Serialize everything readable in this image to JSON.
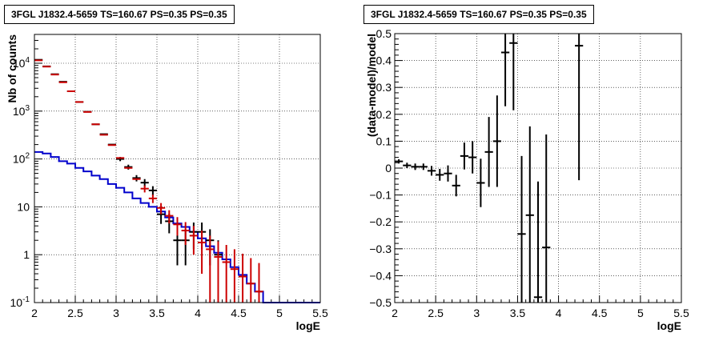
{
  "chart_data": [
    {
      "type": "histogram-line",
      "title": "3FGL J1832.4-5659 TS=160.67 PS=0.35 PS=0.35",
      "xlabel": "logE",
      "ylabel": "Nb of counts",
      "xlim": [
        2,
        5.5
      ],
      "ylim": [
        0.1,
        40000
      ],
      "yscale": "log",
      "grid": true,
      "x_ticks": [
        "2",
        "2.5",
        "3",
        "3.5",
        "4",
        "4.5",
        "5",
        "5.5"
      ],
      "y_ticks": [
        "10^-1",
        "1",
        "10",
        "10^2",
        "10^3",
        "10^4"
      ],
      "series": [
        {
          "color": "#0000cc",
          "style": "step",
          "bin_edges": [
            2.0,
            2.1,
            2.2,
            2.3,
            2.4,
            2.5,
            2.6,
            2.7,
            2.8,
            2.9,
            3.0,
            3.1,
            3.2,
            3.3,
            3.4,
            3.5,
            3.6,
            3.7,
            3.8,
            3.9,
            4.0,
            4.1,
            4.2,
            4.3,
            4.4,
            4.5,
            4.6,
            4.7,
            4.8,
            5.5
          ],
          "values": [
            140,
            130,
            110,
            90,
            80,
            65,
            55,
            45,
            38,
            30,
            25,
            20,
            15,
            12,
            10,
            8,
            6,
            4.5,
            3.8,
            3,
            2.2,
            1.5,
            1.1,
            0.8,
            0.55,
            0.38,
            0.25,
            0.17,
            0.1
          ]
        },
        {
          "color": "#cc0000",
          "style": "errorbar",
          "x": [
            2.05,
            2.15,
            2.25,
            2.35,
            2.45,
            2.55,
            2.65,
            2.75,
            2.85,
            2.95,
            3.05,
            3.15,
            3.25,
            3.35,
            3.45,
            3.55,
            3.65,
            3.75,
            3.85,
            3.95,
            4.05,
            4.15,
            4.25,
            4.35,
            4.45,
            4.55,
            4.65,
            4.75
          ],
          "y": [
            11500,
            8500,
            5800,
            4000,
            2600,
            1550,
            960,
            530,
            320,
            195,
            105,
            65,
            38,
            24,
            15,
            9.5,
            6.5,
            4.3,
            3.2,
            2.5,
            1.8,
            1.3,
            0.9,
            0.7,
            0.5,
            0.35,
            0.25,
            0.17
          ],
          "y_err": [
            0,
            0,
            0,
            0,
            0,
            0,
            0,
            0,
            0,
            0,
            0,
            0,
            0,
            4,
            3,
            2.5,
            2,
            1.8,
            1.6,
            1.5,
            1.4,
            1.2,
            1.0,
            0.9,
            0.8,
            0.7,
            0.6,
            0.5
          ]
        },
        {
          "color": "#000000",
          "style": "errorbar",
          "x": [
            2.05,
            2.15,
            2.25,
            2.35,
            2.45,
            2.55,
            2.65,
            2.75,
            2.85,
            2.95,
            3.05,
            3.15,
            3.25,
            3.35,
            3.45,
            3.55,
            3.65,
            3.75,
            3.85,
            3.95,
            4.05,
            4.15,
            4.25
          ],
          "y": [
            11800,
            8600,
            5900,
            4100,
            2600,
            1550,
            970,
            530,
            330,
            200,
            100,
            68,
            40,
            32,
            22,
            7,
            5,
            2,
            2,
            3,
            3,
            2,
            1
          ],
          "y_err": [
            0,
            0,
            0,
            0,
            0,
            0,
            0,
            0,
            0,
            0,
            10,
            8,
            6,
            6,
            5,
            2.6,
            2.2,
            1.4,
            1.4,
            1.7,
            1.7,
            1.4,
            1.0
          ]
        }
      ]
    },
    {
      "type": "errorbar",
      "title": "3FGL J1832.4-5659 TS=160.67 PS=0.35 PS=0.35",
      "xlabel": "logE",
      "ylabel": "(data-model)/model",
      "xlim": [
        2,
        5.5
      ],
      "ylim": [
        -0.5,
        0.5
      ],
      "grid": true,
      "x_ticks": [
        "2",
        "2.5",
        "3",
        "3.5",
        "4",
        "4.5",
        "5",
        "5.5"
      ],
      "y_ticks": [
        "−0.5",
        "−0.4",
        "−0.3",
        "−0.2",
        "−0.1",
        "0",
        "0.1",
        "0.2",
        "0.3",
        "0.4",
        "0.5"
      ],
      "series": [
        {
          "color": "#000000",
          "x": [
            2.05,
            2.15,
            2.25,
            2.35,
            2.45,
            2.55,
            2.65,
            2.75,
            2.85,
            2.95,
            3.05,
            3.15,
            3.25,
            3.35,
            3.45,
            3.55,
            3.65,
            3.75,
            3.85,
            4.25
          ],
          "y": [
            0.025,
            0.01,
            0.005,
            0.005,
            -0.01,
            -0.025,
            -0.02,
            -0.065,
            0.045,
            0.04,
            -0.055,
            0.06,
            0.1,
            0.43,
            0.465,
            -0.245,
            -0.175,
            -0.48,
            -0.295,
            0.455
          ],
          "y_err": [
            0.008,
            0.01,
            0.012,
            0.012,
            0.018,
            0.022,
            0.03,
            0.04,
            0.05,
            0.06,
            0.09,
            0.13,
            0.17,
            0.2,
            0.25,
            0.29,
            0.33,
            0.43,
            0.42,
            0.5
          ]
        }
      ]
    }
  ]
}
